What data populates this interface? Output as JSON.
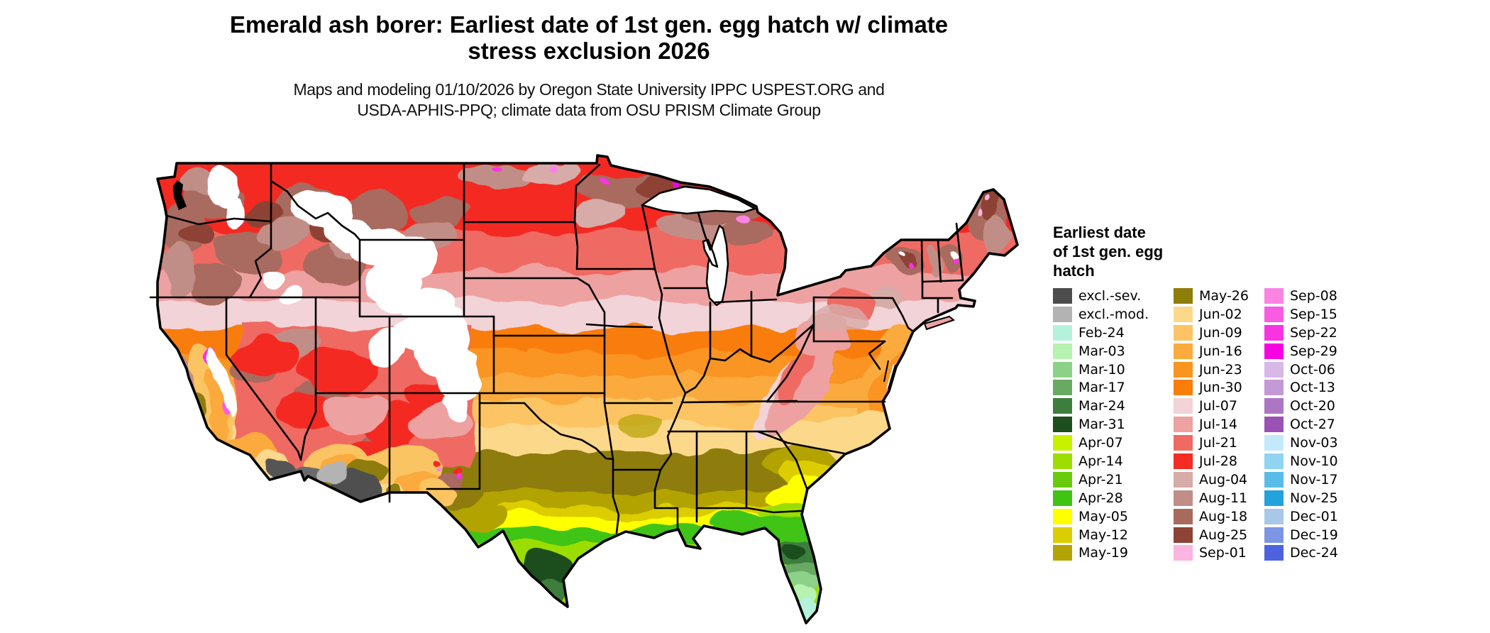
{
  "title": {
    "line1": "Emerald ash borer: Earliest date of 1st gen. egg hatch w/ climate",
    "line2": "stress exclusion 2026"
  },
  "subtitle": {
    "line1": "Maps and modeling 01/10/2026 by Oregon State University IPPC USPEST.ORG and",
    "line2": "USDA-APHIS-PPQ; climate data from OSU PRISM Climate Group"
  },
  "legend": {
    "title_lines": [
      "Earliest date",
      "of 1st gen. egg",
      "hatch"
    ],
    "columns": [
      [
        {
          "label": "excl.-sev.",
          "color": "#4d4d4d"
        },
        {
          "label": "excl.-mod.",
          "color": "#b3b3b3"
        },
        {
          "label": "Feb-24",
          "color": "#b4f2dc"
        },
        {
          "label": "Mar-03",
          "color": "#b6f2b0"
        },
        {
          "label": "Mar-10",
          "color": "#8dd189"
        },
        {
          "label": "Mar-17",
          "color": "#68a963"
        },
        {
          "label": "Mar-24",
          "color": "#3d7e3c"
        },
        {
          "label": "Mar-31",
          "color": "#1c4e1e"
        },
        {
          "label": "Apr-07",
          "color": "#c8f100"
        },
        {
          "label": "Apr-14",
          "color": "#9cdd04"
        },
        {
          "label": "Apr-21",
          "color": "#68cb0b"
        },
        {
          "label": "Apr-28",
          "color": "#3fc414"
        },
        {
          "label": "May-05",
          "color": "#ffff00"
        },
        {
          "label": "May-12",
          "color": "#dccd00"
        },
        {
          "label": "May-19",
          "color": "#b3a303"
        }
      ],
      [
        {
          "label": "May-26",
          "color": "#8e7d08"
        },
        {
          "label": "Jun-02",
          "color": "#fcd88b"
        },
        {
          "label": "Jun-09",
          "color": "#fcc464"
        },
        {
          "label": "Jun-16",
          "color": "#fbaa3e"
        },
        {
          "label": "Jun-23",
          "color": "#fa9420"
        },
        {
          "label": "Jun-30",
          "color": "#f97d0b"
        },
        {
          "label": "Jul-07",
          "color": "#f2d3d7"
        },
        {
          "label": "Jul-14",
          "color": "#eea1a1"
        },
        {
          "label": "Jul-21",
          "color": "#ef6a63"
        },
        {
          "label": "Jul-28",
          "color": "#f42c24"
        },
        {
          "label": "Aug-04",
          "color": "#d7aba7"
        },
        {
          "label": "Aug-11",
          "color": "#c18e87"
        },
        {
          "label": "Aug-18",
          "color": "#a96a5e"
        },
        {
          "label": "Aug-25",
          "color": "#8d4336"
        },
        {
          "label": "Sep-01",
          "color": "#fcb5e0"
        }
      ],
      [
        {
          "label": "Sep-08",
          "color": "#fb84e3"
        },
        {
          "label": "Sep-15",
          "color": "#f95ce2"
        },
        {
          "label": "Sep-22",
          "color": "#f834e2"
        },
        {
          "label": "Sep-29",
          "color": "#f703e2"
        },
        {
          "label": "Oct-06",
          "color": "#d7b8e7"
        },
        {
          "label": "Oct-13",
          "color": "#c399d6"
        },
        {
          "label": "Oct-20",
          "color": "#ac76c5"
        },
        {
          "label": "Oct-27",
          "color": "#9a51b4"
        },
        {
          "label": "Nov-03",
          "color": "#c2eafa"
        },
        {
          "label": "Nov-10",
          "color": "#8fd5f1"
        },
        {
          "label": "Nov-17",
          "color": "#58bce8"
        },
        {
          "label": "Nov-25",
          "color": "#22a3dc"
        },
        {
          "label": "Dec-01",
          "color": "#a9c7e8"
        },
        {
          "label": "Dec-19",
          "color": "#7d96e3"
        },
        {
          "label": "Dec-24",
          "color": "#4d63de"
        }
      ]
    ]
  }
}
